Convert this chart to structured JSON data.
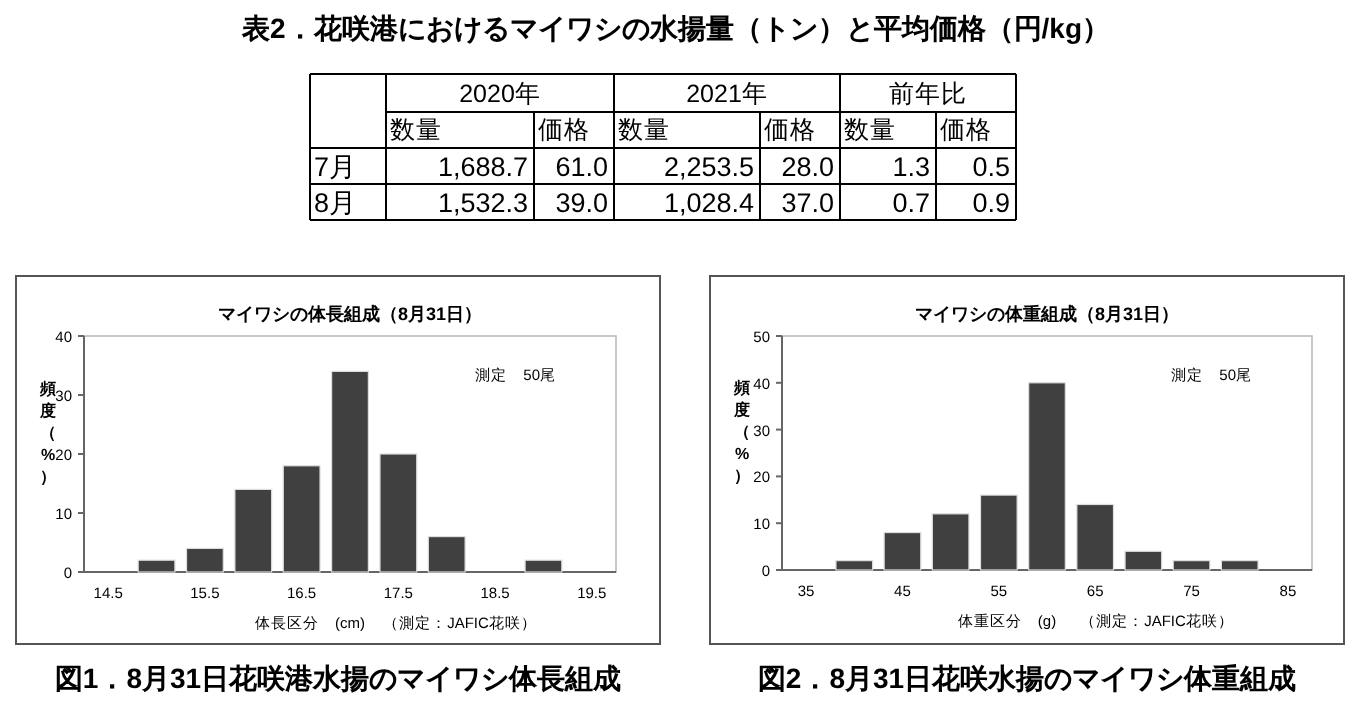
{
  "chart_data": [
    {
      "type": "other",
      "title": "表2．花咲港におけるマイワシの水揚量（トン）と平均価格（円/kg）",
      "annotations": [
        "2020年",
        "2021年",
        "前年比",
        "数量",
        "価格",
        "数量",
        "価格",
        "数量",
        "価格",
        "7月",
        "1,688.7",
        "61.0",
        "2,253.5",
        "28.0",
        "1.3",
        "0.5",
        "8月",
        "1,532.3",
        "39.0",
        "1,028.4",
        "37.0",
        "0.7",
        "0.9"
      ]
    },
    {
      "type": "bar",
      "title": "マイワシの体長組成（8月31日）",
      "xlabel": "体長区分　(cm)",
      "ylabel": "頻度（%）",
      "categories": [
        "14.5",
        null,
        "15.5",
        null,
        "16.5",
        null,
        "17.5",
        null,
        "18.5",
        null,
        "19.5"
      ],
      "values": [
        0,
        2,
        4,
        14,
        18,
        34,
        20,
        6,
        0,
        2,
        0
      ],
      "color": "#404040",
      "ylim": [
        0,
        40
      ],
      "yticks": [
        0,
        10,
        20,
        30,
        40
      ],
      "annotations": [
        "測定　50尾",
        "（測定：JAFIC花咲）",
        "図1．8月31日花咲港水揚のマイワシ体長組成"
      ]
    },
    {
      "type": "bar",
      "title": "マイワシの体重組成（8月31日）",
      "xlabel": "体重区分　(g)",
      "ylabel": "頻度（%）",
      "categories": [
        "35",
        null,
        "45",
        null,
        "55",
        null,
        "65",
        null,
        "75",
        null,
        "85"
      ],
      "values": [
        0,
        2,
        8,
        12,
        16,
        40,
        14,
        4,
        2,
        2,
        0
      ],
      "color": "#404040",
      "ylim": [
        0,
        50
      ],
      "yticks": [
        0,
        10,
        20,
        30,
        40,
        50
      ],
      "annotations": [
        "測定　50尾",
        "（測定：JAFIC花咲）",
        "図2．8月31日花咲水揚のマイワシ体重組成"
      ]
    }
  ]
}
